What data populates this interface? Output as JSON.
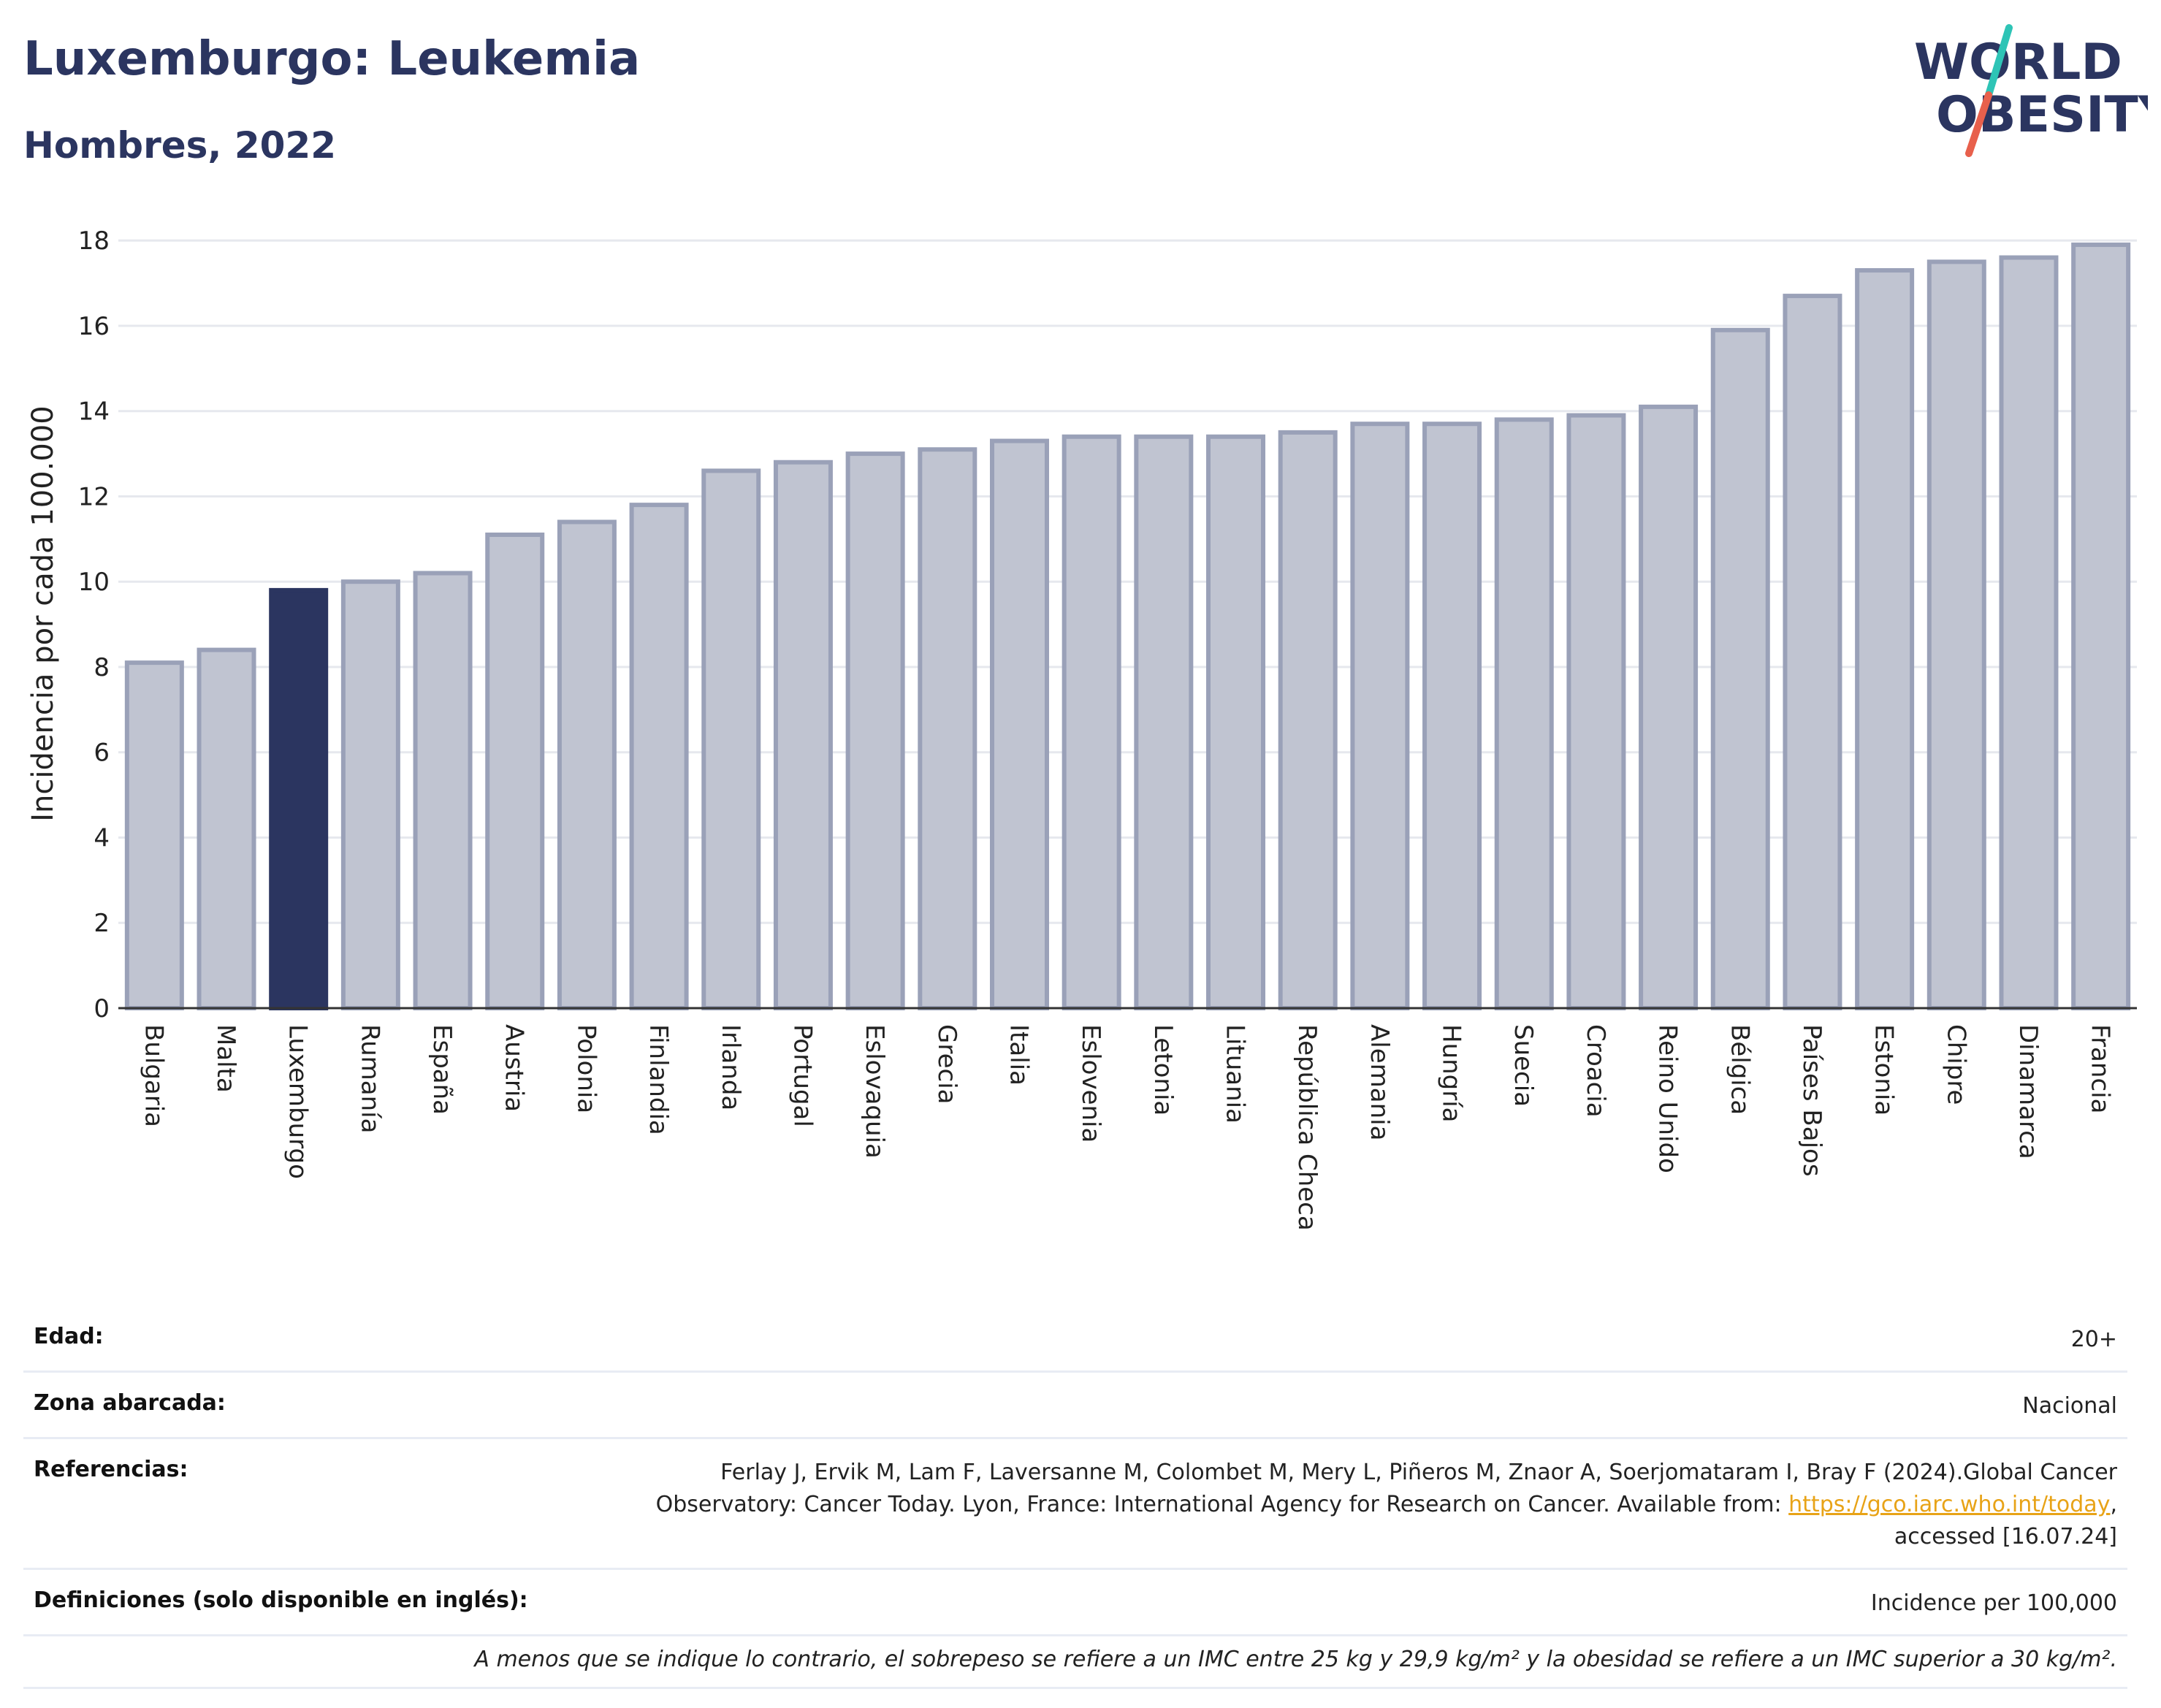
{
  "header": {
    "title": "Luxemburgo: Leukemia",
    "subtitle": "Hombres, 2022"
  },
  "logo": {
    "line1": "WORLD",
    "line2": "OBESITY",
    "colors": {
      "text": "#2b3560",
      "slash_top": "#2ec4b6",
      "slash_bottom": "#e8604c"
    }
  },
  "chart_data": {
    "type": "bar",
    "ylabel": "Incidencia por cada 100.000",
    "xlabel": "",
    "ylim": [
      0,
      18.5
    ],
    "yticks": [
      0,
      2,
      4,
      6,
      8,
      10,
      12,
      14,
      16,
      18
    ],
    "grid": true,
    "highlight": "Luxemburgo",
    "colors": {
      "bar": "#c0c4d1",
      "bar_border": "#9aa1b8",
      "highlight": "#2b3560"
    },
    "categories": [
      "Bulgaria",
      "Malta",
      "Luxemburgo",
      "Rumanía",
      "España",
      "Austria",
      "Polonia",
      "Finlandia",
      "Irlanda",
      "Portugal",
      "Eslovaquia",
      "Grecia",
      "Italia",
      "Eslovenia",
      "Letonia",
      "Lituania",
      "República Checa",
      "Alemania",
      "Hungría",
      "Suecia",
      "Croacia",
      "Reino Unido",
      "Bélgica",
      "Países Bajos",
      "Estonia",
      "Chipre",
      "Dinamarca",
      "Francia"
    ],
    "values": [
      8.1,
      8.4,
      9.8,
      10.0,
      10.2,
      11.1,
      11.4,
      11.8,
      12.6,
      12.8,
      13.0,
      13.1,
      13.3,
      13.4,
      13.4,
      13.4,
      13.5,
      13.7,
      13.7,
      13.8,
      13.9,
      14.1,
      15.9,
      16.7,
      17.3,
      17.5,
      17.6,
      17.9
    ]
  },
  "info": {
    "age_label": "Edad:",
    "age_value": "20+",
    "zone_label": "Zona abarcada:",
    "zone_value": "Nacional",
    "refs_label": "Referencias:",
    "refs_line1": "Ferlay J, Ervik M, Lam F, Laversanne M, Colombet M, Mery L, Piñeros M, Znaor A, Soerjomataram I, Bray F (2024).Global Cancer",
    "refs_line2_prefix": "Observatory: Cancer Today. Lyon, France: International Agency for Research on Cancer. Available from: ",
    "refs_link": "https://gco.iarc.who.int/today",
    "refs_line2_suffix": ",",
    "refs_line3": "accessed [16.07.24]",
    "defs_label": "Definiciones (solo disponible en inglés):",
    "defs_value": "Incidence per 100,000",
    "note": "A menos que se indique lo contrario, el sobrepeso se refiere a un IMC entre 25 kg y 29,9 kg/m² y la obesidad se refiere a un IMC superior a 30 kg/m²."
  }
}
